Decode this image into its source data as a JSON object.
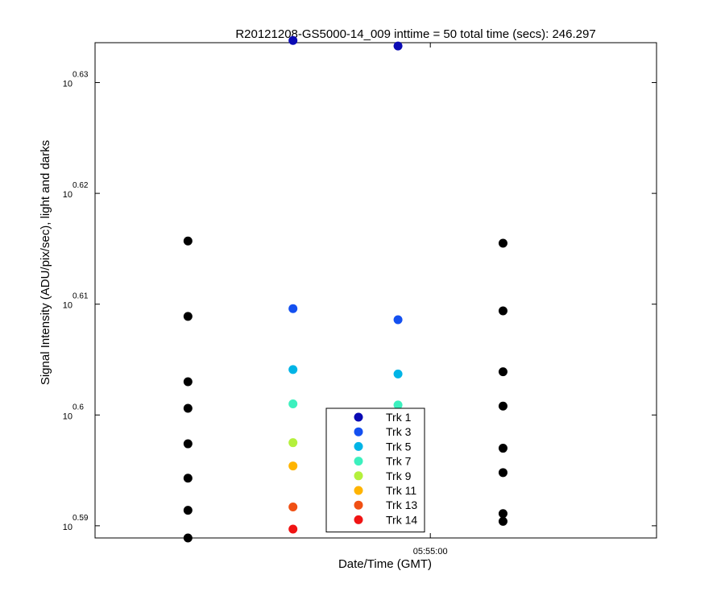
{
  "chart_data": {
    "type": "scatter",
    "title": "R20121208-GS5000-14_009 inttime = 50 total time (secs): 246.297",
    "xlabel": "Date/Time (GMT)",
    "ylabel": "Signal Intensity (ADU/pix/sec), light and darks",
    "x_ticks": [
      {
        "value": 5.9833,
        "label": "05:55:00"
      }
    ],
    "xlim": [
      5.975,
      5.9889
    ],
    "x_unit": "hours (GMT)",
    "yscale": "log10",
    "ylim_exponent": [
      0.5889,
      0.6336
    ],
    "y_ticks": [
      {
        "base": "10",
        "exp": "0.59",
        "value": 0.59
      },
      {
        "base": "10",
        "exp": "0.6",
        "value": 0.6
      },
      {
        "base": "10",
        "exp": "0.61",
        "value": 0.61
      },
      {
        "base": "10",
        "exp": "0.62",
        "value": 0.62
      },
      {
        "base": "10",
        "exp": "0.63",
        "value": 0.63
      }
    ],
    "grid": false,
    "legend_position": "bottom-center",
    "dark_color": "#000000",
    "series": [
      {
        "name": "Trk 1",
        "color": "#0a0ab4",
        "points": [
          {
            "x": 5.9799,
            "y": 0.6338
          },
          {
            "x": 5.9825,
            "y": 0.6333
          }
        ]
      },
      {
        "name": "Trk 3",
        "color": "#1450f0",
        "points": [
          {
            "x": 5.9799,
            "y": 0.6096
          },
          {
            "x": 5.9825,
            "y": 0.6086
          }
        ]
      },
      {
        "name": "Trk 5",
        "color": "#00b4e6",
        "points": [
          {
            "x": 5.9799,
            "y": 0.6041
          },
          {
            "x": 5.9825,
            "y": 0.6037
          }
        ]
      },
      {
        "name": "Trk 7",
        "color": "#3cf0be",
        "points": [
          {
            "x": 5.9799,
            "y": 0.601
          },
          {
            "x": 5.9825,
            "y": 0.6009
          }
        ]
      },
      {
        "name": "Trk 9",
        "color": "#b4f03c",
        "points": [
          {
            "x": 5.9799,
            "y": 0.5975
          },
          {
            "x": 5.9825,
            "y": 0.5974
          }
        ]
      },
      {
        "name": "Trk 11",
        "color": "#ffb400",
        "points": [
          {
            "x": 5.9799,
            "y": 0.5954
          },
          {
            "x": 5.9825,
            "y": 0.5942
          }
        ]
      },
      {
        "name": "Trk 13",
        "color": "#f05014",
        "points": [
          {
            "x": 5.9799,
            "y": 0.5917
          },
          {
            "x": 5.9825,
            "y": 0.5906
          }
        ]
      },
      {
        "name": "Trk 14",
        "color": "#f01414",
        "points": [
          {
            "x": 5.9799,
            "y": 0.5897
          },
          {
            "x": 5.9825,
            "y": 0.5905
          }
        ]
      }
    ],
    "darks": [
      {
        "x": 5.9773,
        "y": 0.6157
      },
      {
        "x": 5.9773,
        "y": 0.6089
      },
      {
        "x": 5.9773,
        "y": 0.603
      },
      {
        "x": 5.9773,
        "y": 0.6006
      },
      {
        "x": 5.9773,
        "y": 0.5974
      },
      {
        "x": 5.9773,
        "y": 0.5943
      },
      {
        "x": 5.9773,
        "y": 0.5914
      },
      {
        "x": 5.9773,
        "y": 0.5889
      },
      {
        "x": 5.9851,
        "y": 0.6155
      },
      {
        "x": 5.9851,
        "y": 0.6094
      },
      {
        "x": 5.9851,
        "y": 0.6039
      },
      {
        "x": 5.9851,
        "y": 0.6008
      },
      {
        "x": 5.9851,
        "y": 0.597
      },
      {
        "x": 5.9851,
        "y": 0.5948
      },
      {
        "x": 5.9851,
        "y": 0.5911
      },
      {
        "x": 5.9851,
        "y": 0.5904
      }
    ]
  }
}
